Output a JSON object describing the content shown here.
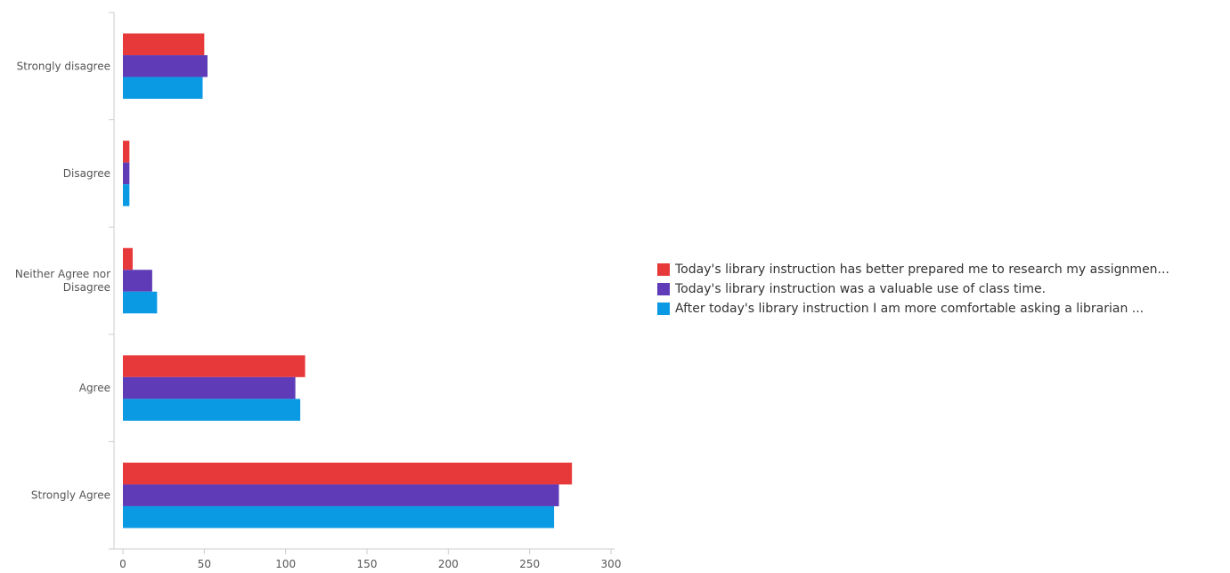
{
  "chart_data": {
    "type": "bar",
    "orientation": "horizontal",
    "categories": [
      "Strongly disagree",
      "Disagree",
      "Neither Agree nor Disagree",
      "Agree",
      "Strongly Agree"
    ],
    "series": [
      {
        "name": "Today's library instruction has better prepared me to research my assignmen...",
        "color": "#e8393a",
        "values": [
          50,
          4,
          6,
          112,
          276
        ]
      },
      {
        "name": "Today's library instruction was a valuable use of class time.",
        "color": "#5f3bb7",
        "values": [
          52,
          4,
          18,
          106,
          268
        ]
      },
      {
        "name": "After today's library instruction I am more comfortable asking a librarian ...",
        "color": "#0a9ae3",
        "values": [
          49,
          4,
          21,
          109,
          265
        ]
      }
    ],
    "xticks": [
      "0",
      "50",
      "100",
      "150",
      "200",
      "250",
      "300"
    ],
    "xlim": [
      0,
      300
    ],
    "grid": false,
    "legend_position": "right"
  }
}
